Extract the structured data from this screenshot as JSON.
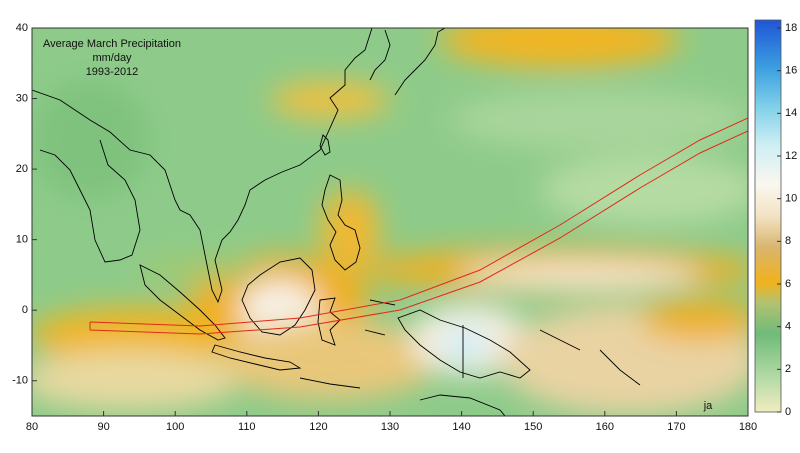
{
  "map": {
    "title": [
      "Average March Precipitation",
      "mm/day",
      "1993-2012"
    ],
    "xlim": [
      80,
      180
    ],
    "ylim": [
      -15,
      40
    ],
    "xticks": [
      80,
      90,
      100,
      110,
      120,
      130,
      140,
      150,
      160,
      170,
      180
    ],
    "yticks": [
      -10,
      0,
      10,
      20,
      30,
      40
    ],
    "colorbar": {
      "lim": [
        0,
        18
      ],
      "ticks": [
        0,
        2,
        4,
        6,
        8,
        10,
        12,
        14,
        16,
        18
      ]
    },
    "credit": "ja"
  }
}
